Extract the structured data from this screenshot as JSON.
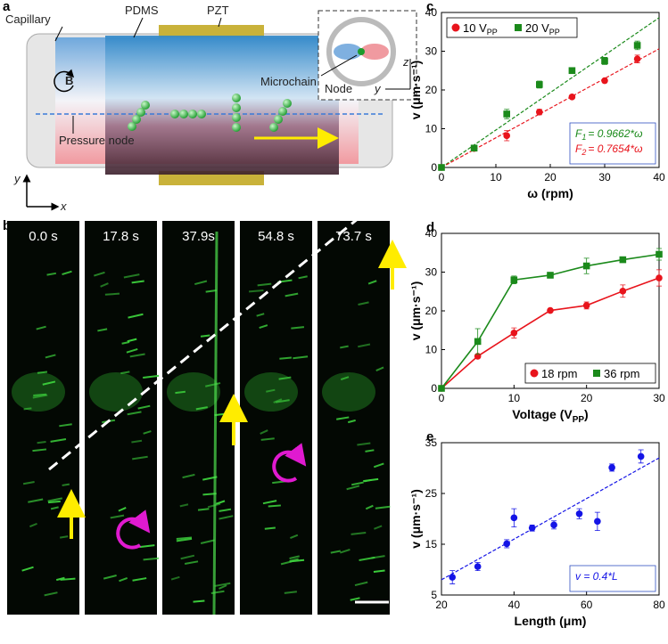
{
  "panel_a": {
    "letter": "a",
    "capillary": "Capillary",
    "pdms": "PDMS",
    "pzt": "PZT",
    "field": "B",
    "microchain": "Microchain",
    "node": "Node",
    "inset_y": "y",
    "inset_z": "z",
    "pressure_node": "Pressure node",
    "axis_y": "y",
    "axis_x": "x"
  },
  "panel_b": {
    "letter": "b",
    "times": [
      "0.0 s",
      "17.8 s",
      "37.9s",
      "54.8 s",
      "73.7 s"
    ]
  },
  "chart_data": [
    {
      "type": "scatter",
      "letter": "c",
      "x_label": "ω (rpm)",
      "y_label": "v (μm·s⁻¹)",
      "x": [
        0,
        6,
        12,
        18,
        24,
        30,
        36
      ],
      "series": [
        {
          "name": "10 V",
          "name_sub": "PP",
          "color": "#e8141c",
          "marker": "circle",
          "values": [
            0,
            4.9,
            8.2,
            14.3,
            18.2,
            22.4,
            28.0
          ],
          "errors": [
            0,
            0.4,
            1.3,
            0.7,
            0.4,
            0.5,
            1.0
          ]
        },
        {
          "name": "20 V",
          "name_sub": "PP",
          "color": "#1b8a1b",
          "marker": "square",
          "values": [
            0,
            5.0,
            13.8,
            21.4,
            25.0,
            27.5,
            31.5
          ],
          "errors": [
            0,
            0.4,
            1.2,
            0.9,
            0.7,
            0.9,
            1.1
          ]
        }
      ],
      "fits": [
        {
          "label": "F",
          "label_sub": "1",
          "equation": "= 0.9662*ω",
          "slope": 0.9662,
          "color": "#1b8a1b"
        },
        {
          "label": "F",
          "label_sub": "2",
          "equation": "= 0.7654*ω",
          "slope": 0.7654,
          "color": "#e8141c"
        }
      ],
      "xlim": [
        0,
        40
      ],
      "xticks": [
        0,
        10,
        20,
        30,
        40
      ],
      "ylim": [
        0,
        40
      ],
      "yticks": [
        0,
        10,
        20,
        30,
        40
      ],
      "legend": "upper left"
    },
    {
      "type": "line",
      "letter": "d",
      "x_label": "Voltage (V",
      "x_label_sub": "PP",
      "x_label_end": ")",
      "y_label": "v (μm·s⁻¹)",
      "x": [
        0,
        5,
        10,
        15,
        20,
        25,
        30
      ],
      "series": [
        {
          "name": "18 rpm",
          "color": "#e8141c",
          "marker": "circle",
          "values": [
            0,
            8.3,
            14.3,
            20.1,
            21.4,
            25.1,
            28.5
          ],
          "errors": [
            0,
            0.4,
            1.3,
            0.4,
            0.9,
            1.6,
            2.1
          ]
        },
        {
          "name": "36 rpm",
          "color": "#1b8a1b",
          "marker": "square",
          "values": [
            0,
            12.1,
            28.0,
            29.2,
            31.6,
            33.2,
            34.6
          ],
          "errors": [
            0,
            3.3,
            1.0,
            0.7,
            2.0,
            0.6,
            1.5
          ]
        }
      ],
      "xlim": [
        0,
        30
      ],
      "xticks": [
        0,
        10,
        20,
        30
      ],
      "ylim": [
        0,
        40
      ],
      "yticks": [
        0,
        10,
        20,
        30,
        40
      ],
      "legend": "lower right"
    },
    {
      "type": "scatter",
      "letter": "e",
      "x_label": "Length (μm)",
      "y_label": "v (μm·s⁻¹)",
      "x": [
        23,
        30,
        38,
        40,
        45,
        51,
        58,
        63,
        67,
        75
      ],
      "series": [
        {
          "color": "#1414e6",
          "marker": "circle",
          "values": [
            8.5,
            10.6,
            15.1,
            20.2,
            18.2,
            18.8,
            21.0,
            19.5,
            30.1,
            32.3
          ],
          "errors": [
            1.3,
            0.8,
            0.8,
            1.8,
            0.6,
            0.8,
            1.0,
            1.8,
            0.7,
            1.3
          ]
        }
      ],
      "fits": [
        {
          "equation": "v = 0.4*L",
          "slope": 0.4,
          "color": "#1414e6"
        }
      ],
      "xlim": [
        20,
        80
      ],
      "xticks": [
        20,
        40,
        60,
        80
      ],
      "ylim": [
        5,
        35
      ],
      "yticks": [
        5,
        15,
        25,
        35
      ]
    }
  ]
}
